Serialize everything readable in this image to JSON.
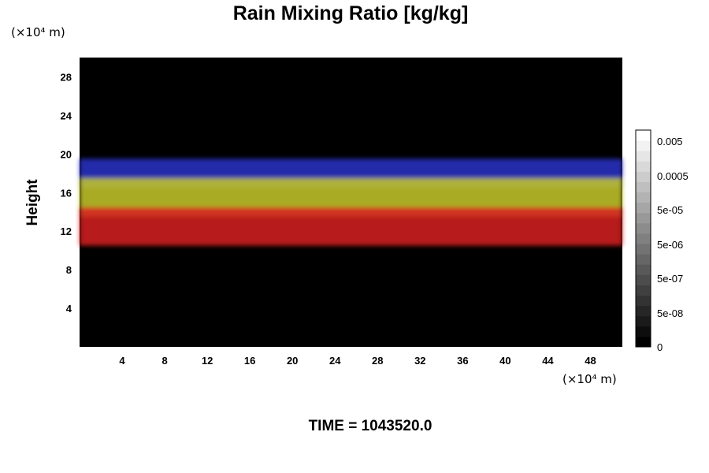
{
  "chart_data": {
    "type": "heatmap",
    "title": "Rain Mixing Ratio [kg/kg]",
    "xlabel": "",
    "ylabel": "Height",
    "x_unit": "(×10⁴ m)",
    "y_unit": "(×10⁴ m)",
    "xlim": [
      0,
      51
    ],
    "ylim": [
      0,
      30
    ],
    "x_ticks": [
      4,
      8,
      12,
      16,
      20,
      24,
      28,
      32,
      36,
      40,
      44,
      48
    ],
    "y_ticks": [
      4,
      8,
      12,
      16,
      20,
      24,
      28
    ],
    "annotation": "TIME = 1043520.0",
    "colorbar": {
      "labels": [
        "0",
        "5e-08",
        "5e-07",
        "5e-06",
        "5e-05",
        "0.0005",
        "0.005"
      ],
      "colors": [
        "#000000",
        "#ffffff"
      ]
    },
    "layers": [
      {
        "color": "#2a34c8",
        "y_bottom": 16.5,
        "y_top": 19.5
      },
      {
        "color": "#c7c92a",
        "y_bottom": 13.5,
        "y_top": 17.5
      },
      {
        "color": "#d8201e",
        "y_bottom": 10.5,
        "y_top": 14.5
      }
    ],
    "background_color": "#000000"
  }
}
